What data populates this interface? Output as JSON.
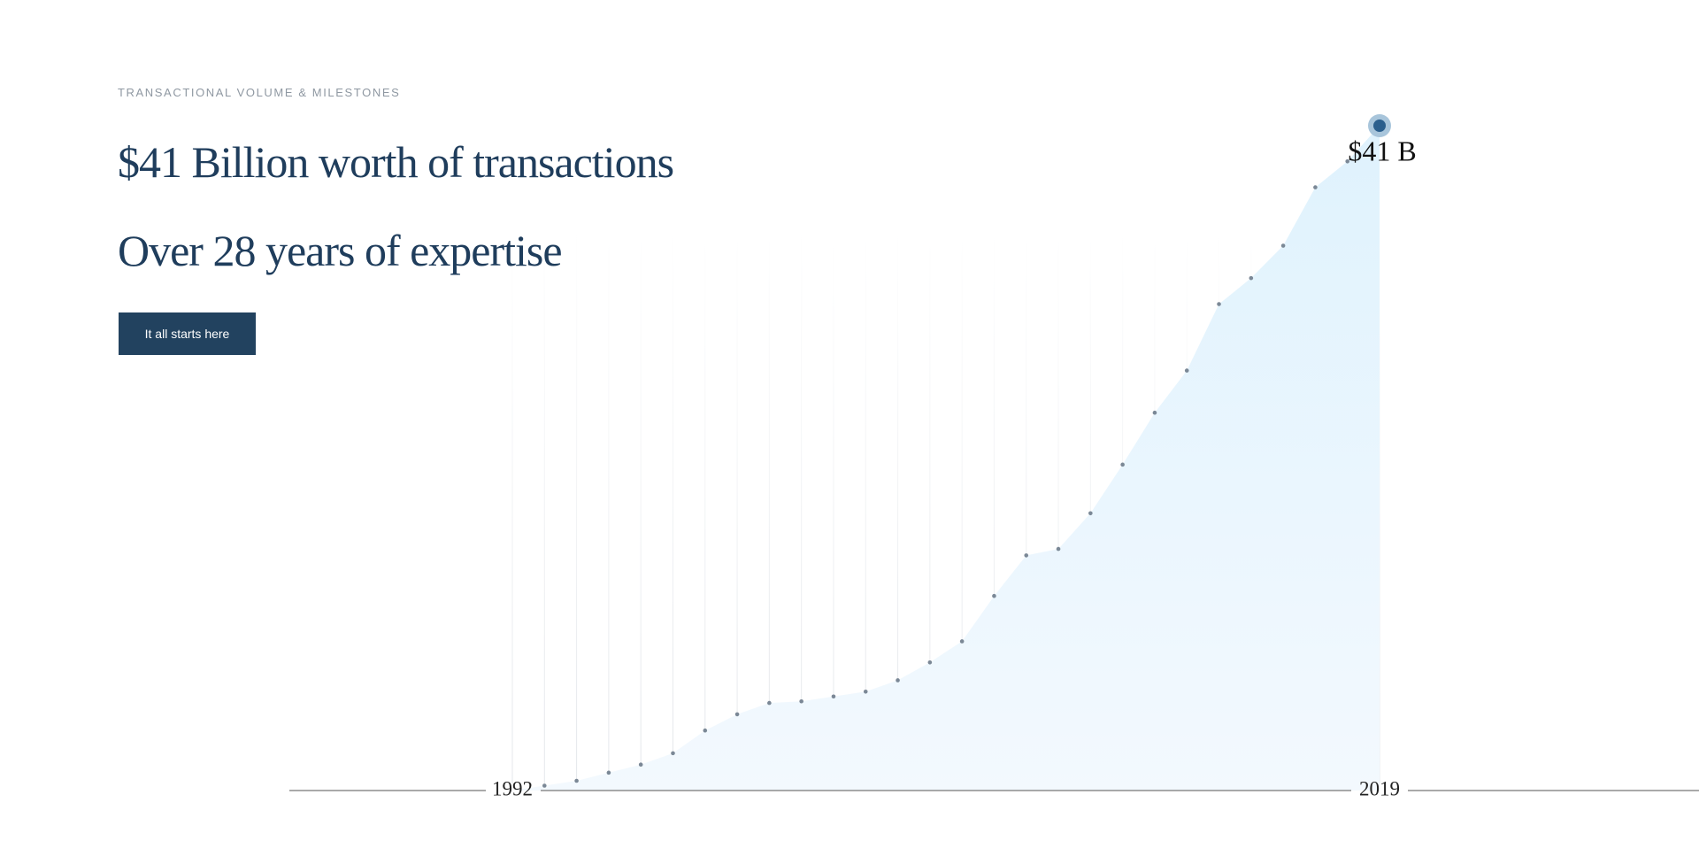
{
  "eyebrow": "TRANSACTIONAL VOLUME & MILESTONES",
  "headline": "$41 Billion worth of transactions",
  "subheadline": "Over 28 years of expertise",
  "button": "It all starts here",
  "chart_data": {
    "type": "area",
    "x": [
      1992,
      1993,
      1994,
      1995,
      1996,
      1997,
      1998,
      1999,
      2000,
      2001,
      2002,
      2003,
      2004,
      2005,
      2006,
      2007,
      2008,
      2009,
      2010,
      2011,
      2012,
      2013,
      2014,
      2015,
      2016,
      2017,
      2018,
      2019
    ],
    "values": [
      0,
      0.3,
      0.6,
      1.1,
      1.6,
      2.3,
      3.7,
      4.7,
      5.4,
      5.5,
      5.8,
      6.1,
      6.8,
      7.9,
      9.2,
      12.0,
      14.5,
      14.9,
      17.1,
      20.1,
      23.3,
      25.9,
      30.0,
      31.6,
      33.6,
      37.2,
      38.8,
      41
    ],
    "value_labels": [
      null,
      null,
      null,
      null,
      null,
      null,
      null,
      null,
      null,
      null,
      null,
      null,
      null,
      null,
      null,
      null,
      null,
      null,
      null,
      null,
      null,
      null,
      null,
      null,
      null,
      null,
      null,
      "$41 B"
    ],
    "xlim": [
      1992,
      2019
    ],
    "xticks": [
      1992,
      2019
    ],
    "ylim": [
      0,
      41
    ],
    "color": "#e1f3fd",
    "marker_color": "#7b8896",
    "highlight_color": "#2b5f8d",
    "grid": true
  }
}
